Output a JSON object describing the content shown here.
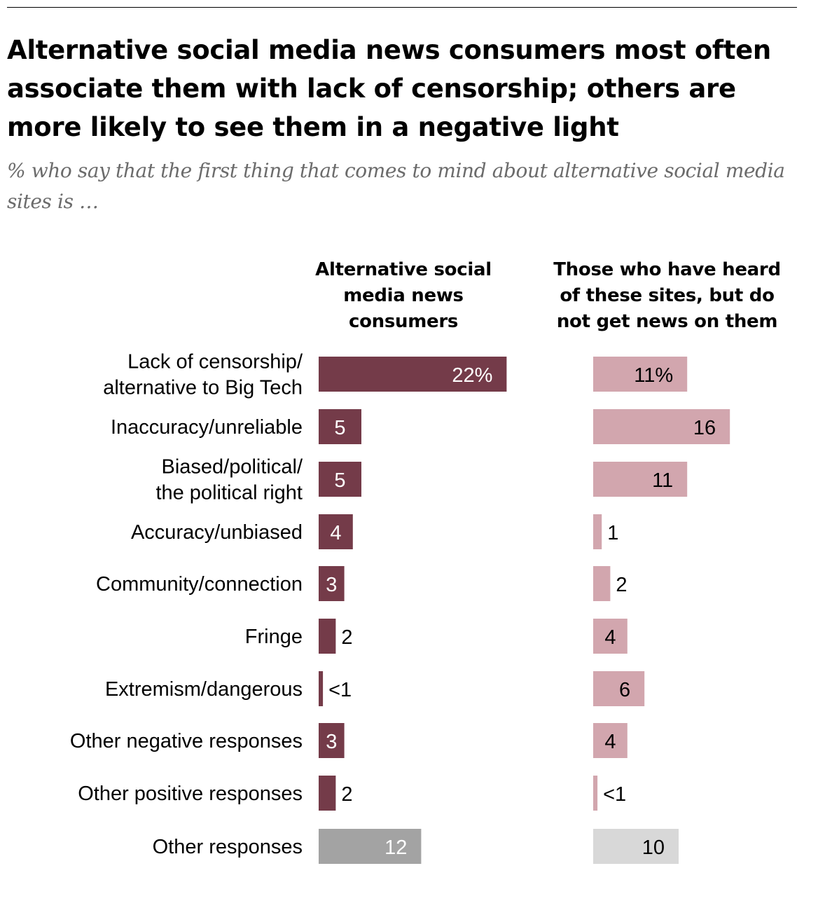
{
  "title": "Alternative social media news consumers most often associate them with lack of censorship; others are more likely to see them in a negative light",
  "subtitle": "% who say that the first thing that comes to mind about alternative social media sites is …",
  "chart_data": {
    "type": "bar",
    "orientation": "horizontal",
    "title": "Alternative social media news consumers most often associate them with lack of censorship; others are more likely to see them in a negative light",
    "subtitle": "% who say that the first thing that comes to mind about alternative social media sites is …",
    "unit": "%",
    "categories": [
      [
        "Lack of censorship/",
        "alternative to Big Tech"
      ],
      [
        "Inaccuracy/unreliable"
      ],
      [
        "Biased/political/",
        "the political right"
      ],
      [
        "Accuracy/unbiased"
      ],
      [
        "Community/connection"
      ],
      [
        "Fringe"
      ],
      [
        "Extremism/dangerous"
      ],
      [
        "Other negative responses"
      ],
      [
        "Other positive responses"
      ],
      [
        "Other responses"
      ]
    ],
    "series": [
      {
        "name": "Alternative social media news consumers",
        "values": [
          22,
          5,
          5,
          4,
          3,
          2,
          0.5,
          3,
          2,
          12
        ],
        "labels": [
          "22%",
          "5",
          "5",
          "4",
          "3",
          "2",
          "<1",
          "3",
          "2",
          "12"
        ],
        "color": "#743b49",
        "other_color": "#a3a3a3"
      },
      {
        "name": "Those who have heard of these sites, but do not get news on them",
        "values": [
          11,
          16,
          11,
          1,
          2,
          4,
          6,
          4,
          0.5,
          10
        ],
        "labels": [
          "11%",
          "16",
          "11",
          "1",
          "2",
          "4",
          "6",
          "4",
          "<1",
          "10"
        ],
        "color": "#d2a6ae",
        "other_color": "#d8d8d8"
      }
    ],
    "column_headers": [
      [
        "Alternative social",
        "media news",
        "consumers"
      ],
      [
        "Those who have heard",
        "of these sites, but do",
        "not get news on them"
      ]
    ],
    "xlim": [
      0,
      22
    ]
  }
}
